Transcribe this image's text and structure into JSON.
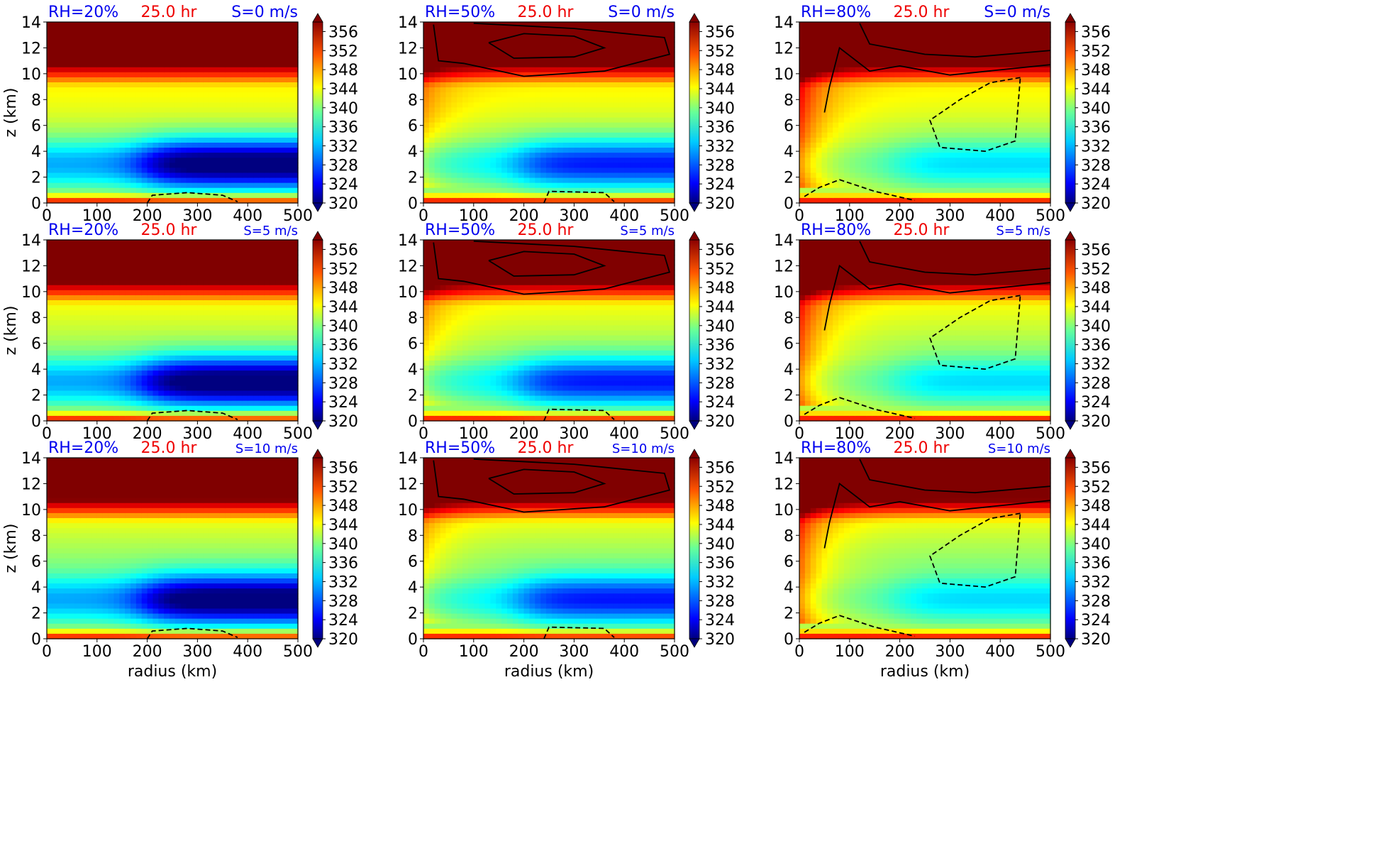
{
  "chart_data": {
    "type": "heatmap",
    "colormap": "jet",
    "shared": {
      "x_ticks": [
        "0",
        "100",
        "200",
        "300",
        "400",
        "500"
      ],
      "y_ticks": [
        "0",
        "2",
        "4",
        "6",
        "8",
        "10",
        "12",
        "14"
      ],
      "xlabel": "radius (km)",
      "ylabel": "z (km)",
      "xlim": [
        0,
        500
      ],
      "ylim": [
        0,
        14
      ],
      "colorbar_ticks": [
        "320",
        "324",
        "328",
        "332",
        "336",
        "340",
        "344",
        "348",
        "352",
        "356"
      ],
      "colorbar_range": [
        320,
        358
      ],
      "colorbar_extend": "both",
      "time_label": "25.0 hr"
    },
    "colors": {
      "label_blue": "#0000ee",
      "label_red": "#ee0000"
    },
    "panels": [
      {
        "rh": 20,
        "rh_label": "RH=20%",
        "shear_label": "S=0 m/s"
      },
      {
        "rh": 50,
        "rh_label": "RH=50%",
        "shear_label": "S=0 m/s"
      },
      {
        "rh": 80,
        "rh_label": "RH=80%",
        "shear_label": "S=0 m/s"
      },
      {
        "rh": 20,
        "rh_label": "RH=20%",
        "shear_label": "S=5 m/s"
      },
      {
        "rh": 50,
        "rh_label": "RH=50%",
        "shear_label": "S=5 m/s"
      },
      {
        "rh": 80,
        "rh_label": "RH=80%",
        "shear_label": "S=5 m/s"
      },
      {
        "rh": 20,
        "rh_label": "RH=20%",
        "shear_label": "S=10 m/s"
      },
      {
        "rh": 50,
        "rh_label": "RH=50%",
        "shear_label": "S=10 m/s"
      },
      {
        "rh": 80,
        "rh_label": "RH=80%",
        "shear_label": "S=10 m/s"
      }
    ]
  }
}
